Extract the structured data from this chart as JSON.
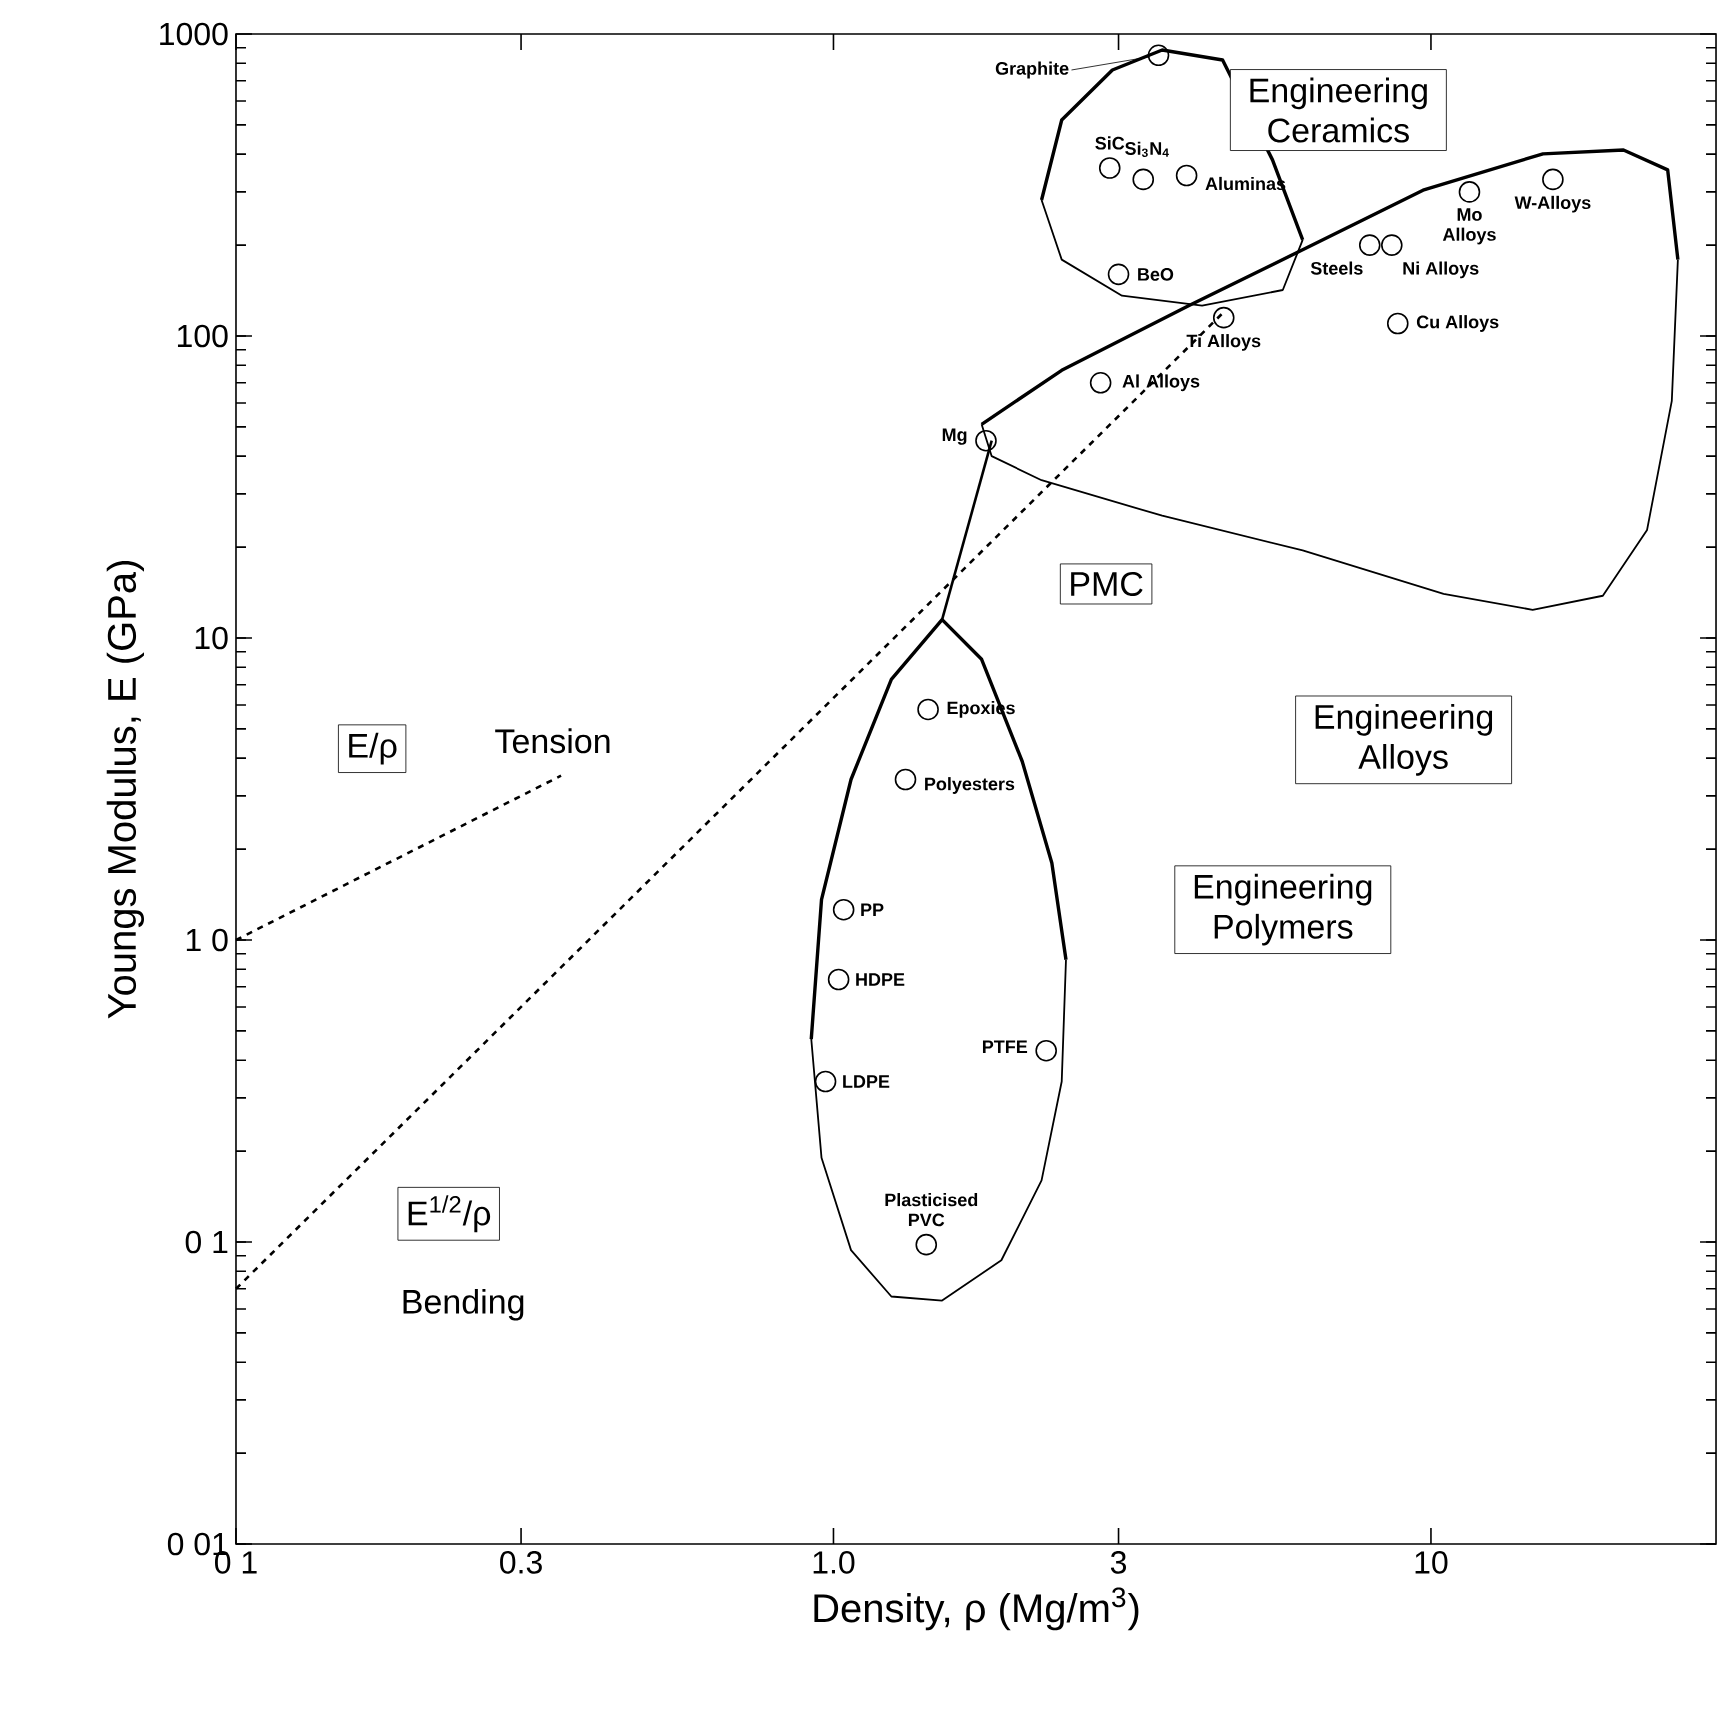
{
  "chart_data": {
    "type": "scatter",
    "xlabel": "Density, ρ (Mg/m$^{3}$)",
    "ylabel": "Youngs Modulus, E (GPa)",
    "log": "xy",
    "xlim": [
      0.1,
      30
    ],
    "ylim": [
      0.01,
      1000
    ],
    "xticks": [
      {
        "value": 0.1,
        "label": "0 1"
      },
      {
        "value": 0.3,
        "label": "0.3"
      },
      {
        "value": 1,
        "label": "1.0"
      },
      {
        "value": 3,
        "label": "3"
      },
      {
        "value": 10,
        "label": "10"
      }
    ],
    "yticks": [
      {
        "value": 0.01,
        "label": "0 01"
      },
      {
        "value": 0.1,
        "label": "0 1"
      },
      {
        "value": 1,
        "label": "1 0"
      },
      {
        "value": 10,
        "label": "10"
      },
      {
        "value": 100,
        "label": "100"
      },
      {
        "value": 1000,
        "label": "1000"
      }
    ],
    "series": [
      {
        "color": "#000000",
        "marker": "circle",
        "x": [
          3.5,
          2.9,
          3.3,
          3.9,
          3.0,
          11.6,
          16,
          7.9,
          8.6,
          8.8,
          4.5,
          2.8,
          1.8,
          1.44,
          1.32,
          1.04,
          1.02,
          0.97,
          2.27,
          1.43
        ],
        "values": [
          850,
          360,
          330,
          340,
          160,
          300,
          330,
          200,
          200,
          110,
          115,
          70,
          45,
          5.8,
          3.4,
          1.26,
          0.74,
          0.34,
          0.43,
          0.098
        ]
      },
      {
        "type": "line",
        "color": "#000000",
        "line_style": "solid",
        "x": [
          2.23,
          2.41,
          2.93,
          3.55,
          4.48,
          5.43,
          6.1
        ],
        "values": [
          282,
          519,
          760,
          885,
          820,
          383,
          208
        ]
      },
      {
        "type": "line",
        "color": "#000000",
        "line_style": "solid",
        "x": [
          2.23,
          2.41,
          3.04,
          4.14,
          5.65,
          6.1
        ],
        "values": [
          282,
          179,
          136,
          126,
          142,
          208
        ]
      },
      {
        "type": "line",
        "color": "#000000",
        "line_style": "solid",
        "x": [
          1.77,
          2.41,
          3.93,
          6.1,
          9.7,
          15.4,
          21,
          24.9,
          25.9
        ],
        "values": [
          51,
          77,
          126,
          193,
          304,
          401,
          413,
          355,
          179
        ]
      },
      {
        "type": "line",
        "color": "#000000",
        "line_style": "solid",
        "x": [
          1.77,
          1.84,
          2.23,
          3.55,
          6.1,
          10.5,
          14.8,
          19.4,
          23,
          25.3,
          25.9
        ],
        "values": [
          51,
          40,
          33.3,
          25.4,
          19.5,
          14,
          12.4,
          13.8,
          22.8,
          61,
          179
        ]
      },
      {
        "type": "line",
        "color": "#000000",
        "line_style": "solid",
        "x": [
          0.918,
          0.955,
          1.07,
          1.25,
          1.52,
          1.77,
          2.07,
          2.32,
          2.45
        ],
        "values": [
          0.47,
          1.36,
          3.4,
          7.3,
          11.5,
          8.5,
          3.9,
          1.8,
          0.86
        ]
      },
      {
        "type": "line",
        "color": "#000000",
        "line_style": "solid",
        "x": [
          0.918,
          0.955,
          1.07,
          1.25,
          1.52,
          1.91,
          2.23,
          2.41,
          2.45
        ],
        "values": [
          0.47,
          0.19,
          0.094,
          0.066,
          0.064,
          0.087,
          0.16,
          0.34,
          0.86
        ]
      },
      {
        "type": "line",
        "color": "#000000",
        "line_style": "solid",
        "x": [
          1.52,
          1.84
        ],
        "values": [
          11.5,
          45
        ]
      },
      {
        "type": "line",
        "color": "#000000",
        "line_style": "dashed",
        "x": [
          0.1,
          0.35
        ],
        "values": [
          1,
          3.5
        ]
      },
      {
        "type": "line",
        "color": "#000000",
        "line_style": "dashed",
        "x": [
          0.1,
          4.5
        ],
        "values": [
          0.07,
          120
        ]
      }
    ],
    "annotations": [
      {
        "text": "Graphite",
        "x": 3.5,
        "y": 850
      },
      {
        "text": "SiC",
        "x": 2.9,
        "y": 360
      },
      {
        "text": "Si$_{3}$N$_{4}$",
        "x": 3.3,
        "y": 330
      },
      {
        "text": "Aluminas",
        "x": 3.9,
        "y": 340
      },
      {
        "text": "BeO",
        "x": 3.0,
        "y": 160
      },
      {
        "text": "Mo Alloys",
        "x": 11.6,
        "y": 300
      },
      {
        "text": "W-Alloys",
        "x": 16,
        "y": 330
      },
      {
        "text": "Steels",
        "x": 7.9,
        "y": 200
      },
      {
        "text": "Ni Alloys",
        "x": 8.6,
        "y": 200
      },
      {
        "text": "Cu Alloys",
        "x": 8.8,
        "y": 110
      },
      {
        "text": "Ti Alloys",
        "x": 4.5,
        "y": 115
      },
      {
        "text": "Al Alloys",
        "x": 2.8,
        "y": 70
      },
      {
        "text": "Mg",
        "x": 1.8,
        "y": 45
      },
      {
        "text": "Epoxies",
        "x": 1.44,
        "y": 5.8
      },
      {
        "text": "Polyesters",
        "x": 1.32,
        "y": 3.4
      },
      {
        "text": "PP",
        "x": 1.04,
        "y": 1.26
      },
      {
        "text": "HDPE",
        "x": 1.02,
        "y": 0.74
      },
      {
        "text": "LDPE",
        "x": 0.97,
        "y": 0.34
      },
      {
        "text": "PTFE",
        "x": 2.27,
        "y": 0.43
      },
      {
        "text": "Plasticised PVC",
        "x": 1.43,
        "y": 0.098
      },
      {
        "text": "Tension",
        "x": 0.35,
        "y": 3.5
      },
      "Engineering Ceramics",
      "Engineering Alloys",
      "Engineering Polymers",
      "PMC",
      "E/ρ",
      "E$^{1/2}$/ρ",
      "Bending"
    ]
  }
}
